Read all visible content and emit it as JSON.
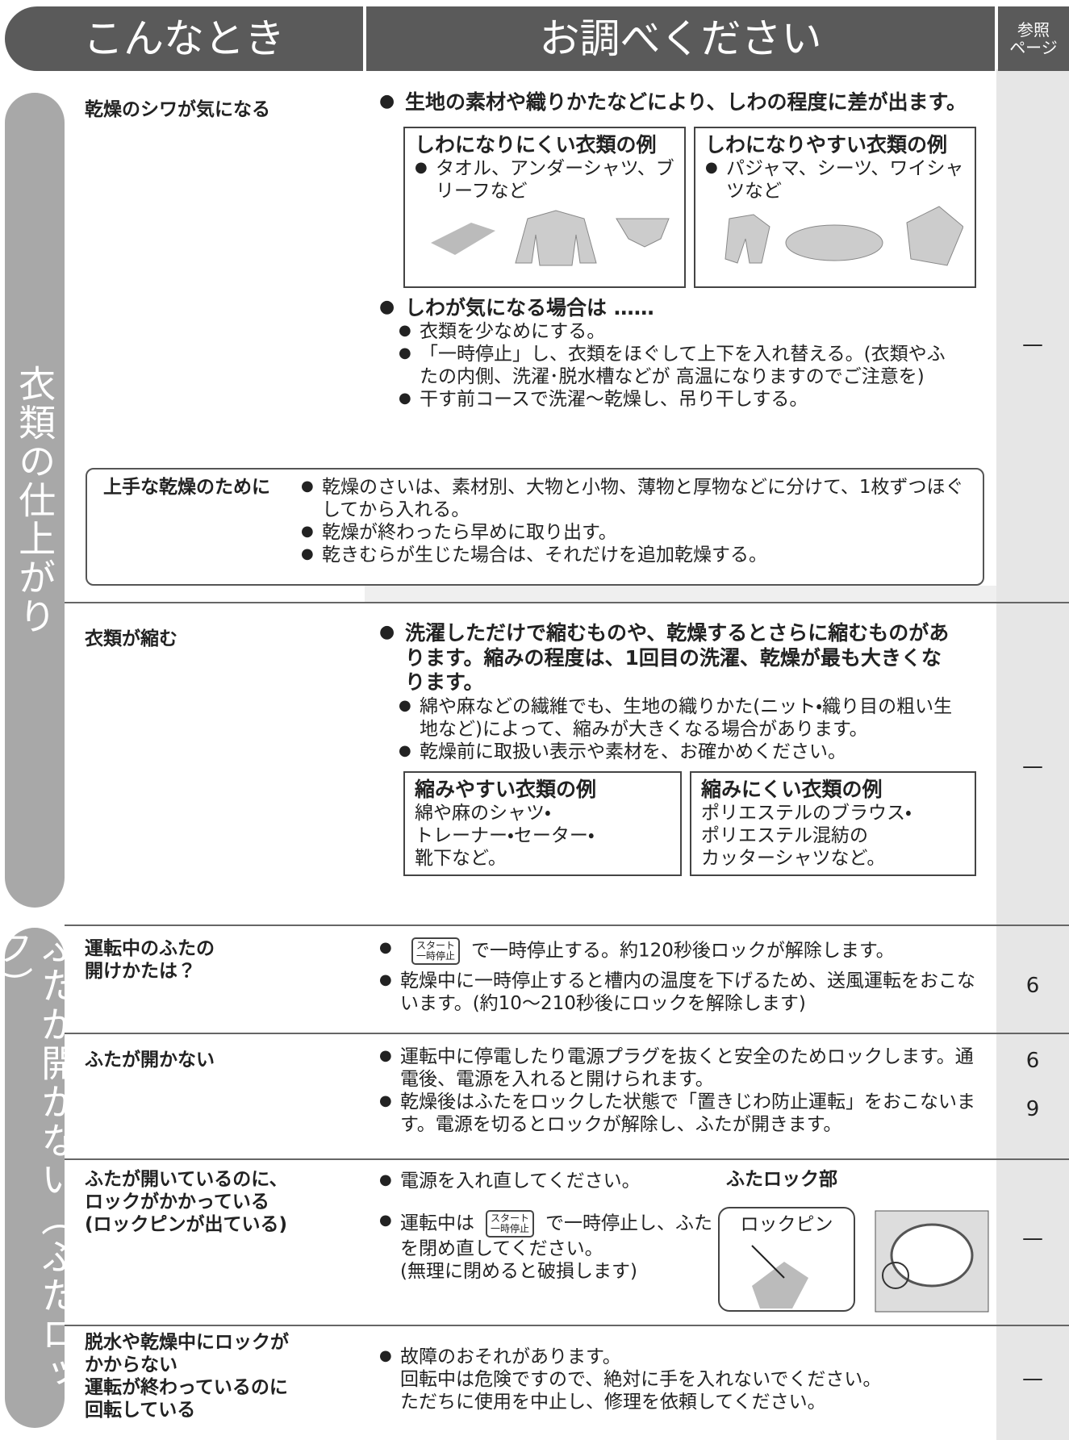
{
  "header": {
    "col1": "こんなとき",
    "col2": "お調べください",
    "col3": [
      "参照",
      "ページ"
    ]
  },
  "sections": [
    {
      "side": "衣類の仕上がり"
    },
    {
      "side": "ふたが開かない（ふたロック）"
    }
  ],
  "wrinkle": {
    "issue": "乾燥のシワが気になる",
    "lead": "生地の素材や織りかたなどにより、しわの程度に差が出ます。",
    "boxes": [
      {
        "title": "しわになりにくい衣類の例",
        "text": "タオル、アンダーシャツ、ブリーフなど"
      },
      {
        "title": "しわになりやすい衣類の例",
        "text": "パジャマ、シーツ、ワイシャツなど"
      }
    ],
    "lead2": "しわが気になる場合は ……",
    "items": [
      "衣類を少なめにする。",
      "「一時停止」し、衣類をほぐして上下を入れ替える。(衣類やふたの内側、洗濯･脱水槽などが 高温になりますのでご注意を)",
      "干す前コースで洗濯～乾燥し、吊り干しする。"
    ],
    "page": "—"
  },
  "tip": {
    "title": "上手な乾燥のために",
    "items": [
      "乾燥のさいは、素材別、大物と小物、薄物と厚物などに分けて、1枚ずつほぐしてから入れる。",
      "乾燥が終わったら早めに取り出す。",
      "乾きむらが生じた場合は、それだけを追加乾燥する。"
    ]
  },
  "shrink": {
    "issue": "衣類が縮む",
    "lead": "洗濯しただけで縮むものや、乾燥するとさらに縮むものがあります。縮みの程度は、1回目の洗濯、乾燥が最も大きくなります。",
    "items": [
      "綿や麻などの繊維でも、生地の織りかた(ニット・織り目の粗い生地など)によって、縮みが大きくなる場合があります。",
      "乾燥前に取扱い表示や素材を、お確かめください。"
    ],
    "boxes": [
      {
        "title": "縮みやすい衣類の例",
        "lines": [
          "綿や麻のシャツ・",
          "トレーナー・セーター・",
          "靴下など。"
        ]
      },
      {
        "title": "縮みにくい衣類の例",
        "lines": [
          "ポリエステルのブラウス・",
          "ポリエステル混紡の",
          "カッターシャツなど。"
        ]
      }
    ],
    "page": "—"
  },
  "button": [
    "スタート",
    "一時停止"
  ],
  "lock_rows": [
    {
      "issue": [
        "運転中のふたの",
        "開けかたは？"
      ],
      "items": [
        "で一時停止する。約120秒後ロックが解除します。",
        "乾燥中に一時停止すると槽内の温度を下げるため、送風運転をおこないます。(約10～210秒後にロックを解除します)"
      ],
      "pages": [
        "6"
      ]
    },
    {
      "issue": [
        "ふたが開かない"
      ],
      "items": [
        "運転中に停電したり電源プラグを抜くと安全のためロックします。通電後、電源を入れると開けられます。",
        "乾燥後はふたをロックした状態で「置きじわ防止運転」をおこないます。電源を切るとロックが解除し、ふたが開きます。"
      ],
      "pages": [
        "6",
        "9"
      ]
    },
    {
      "issue": [
        "ふたが開いているのに、",
        "ロックがかかっている",
        "(ロックピンが出ている)"
      ],
      "items": [
        "電源を入れ直してください。",
        "運転中は",
        "で一時停止し、ふたを閉め直してください。",
        "(無理に閉めると破損します)"
      ],
      "figure": {
        "title": "ふたロック部",
        "callout": "ロックピン"
      },
      "pages": [
        "—"
      ]
    },
    {
      "issue": [
        "脱水や乾燥中にロックが",
        "かからない",
        "運転が終わっているのに",
        "回転している"
      ],
      "items": [
        "故障のおそれがあります。",
        "回転中は危険ですので、絶対に手を入れないでください。",
        "ただちに使用を中止し、修理を依頼してください。"
      ],
      "pages": [
        "—"
      ]
    }
  ]
}
